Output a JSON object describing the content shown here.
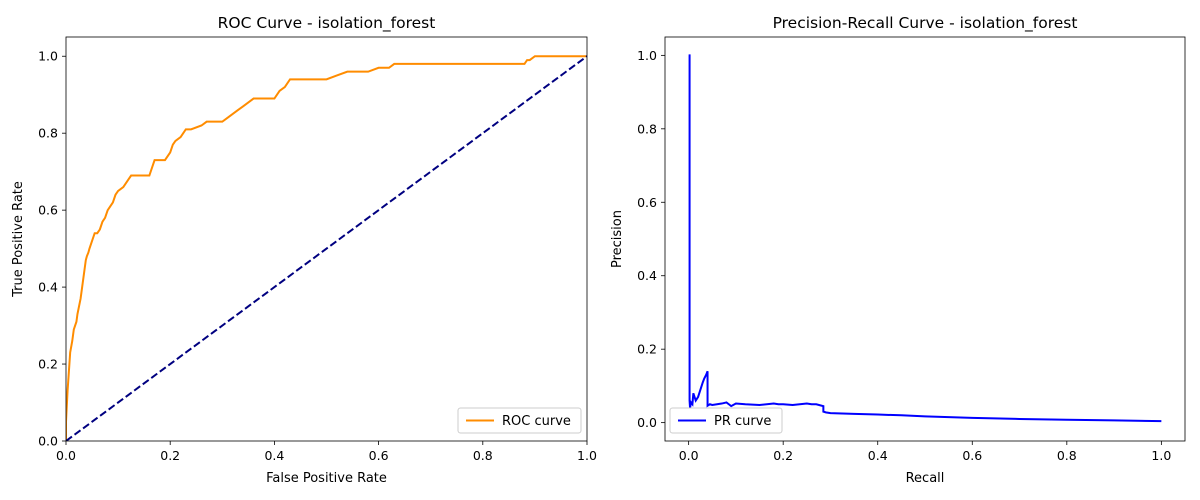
{
  "chart_data": [
    {
      "type": "line",
      "title": "ROC Curve - isolation_forest",
      "xlabel": "False Positive Rate",
      "ylabel": "True Positive Rate",
      "xlim": [
        0,
        1
      ],
      "ylim": [
        0,
        1.05
      ],
      "xticks": [
        0,
        0.2,
        0.4,
        0.6,
        0.8,
        1.0
      ],
      "yticks": [
        0,
        0.2,
        0.4,
        0.6,
        0.8,
        1.0
      ],
      "xtick_labels": [
        "0.0",
        "0.2",
        "0.4",
        "0.6",
        "0.8",
        "1.0"
      ],
      "ytick_labels": [
        "0.0",
        "0.2",
        "0.4",
        "0.6",
        "0.8",
        "1.0"
      ],
      "grid": false,
      "legend_position": "lower-right",
      "series": [
        {
          "name": "ROC curve",
          "color": "#ff8c00",
          "style": "solid",
          "x": [
            0,
            0,
            0.003,
            0.006,
            0.008,
            0.012,
            0.015,
            0.02,
            0.022,
            0.025,
            0.028,
            0.03,
            0.032,
            0.035,
            0.038,
            0.04,
            0.043,
            0.045,
            0.05,
            0.055,
            0.06,
            0.065,
            0.07,
            0.075,
            0.08,
            0.085,
            0.09,
            0.095,
            0.1,
            0.11,
            0.12,
            0.125,
            0.13,
            0.14,
            0.16,
            0.165,
            0.17,
            0.18,
            0.19,
            0.2,
            0.205,
            0.21,
            0.22,
            0.225,
            0.23,
            0.24,
            0.26,
            0.27,
            0.3,
            0.31,
            0.32,
            0.33,
            0.34,
            0.35,
            0.36,
            0.4,
            0.405,
            0.41,
            0.42,
            0.43,
            0.5,
            0.52,
            0.54,
            0.58,
            0.6,
            0.62,
            0.63,
            0.64,
            0.88,
            0.885,
            0.89,
            0.9,
            1.0
          ],
          "y": [
            0,
            0.05,
            0.13,
            0.19,
            0.23,
            0.26,
            0.29,
            0.31,
            0.33,
            0.35,
            0.37,
            0.39,
            0.41,
            0.44,
            0.47,
            0.48,
            0.49,
            0.5,
            0.52,
            0.54,
            0.54,
            0.55,
            0.57,
            0.58,
            0.6,
            0.61,
            0.62,
            0.64,
            0.65,
            0.66,
            0.68,
            0.69,
            0.69,
            0.69,
            0.69,
            0.71,
            0.73,
            0.73,
            0.73,
            0.75,
            0.77,
            0.78,
            0.79,
            0.8,
            0.81,
            0.81,
            0.82,
            0.83,
            0.83,
            0.84,
            0.85,
            0.86,
            0.87,
            0.88,
            0.89,
            0.89,
            0.9,
            0.91,
            0.92,
            0.94,
            0.94,
            0.95,
            0.96,
            0.96,
            0.97,
            0.97,
            0.98,
            0.98,
            0.98,
            0.99,
            0.99,
            1.0,
            1.0
          ]
        },
        {
          "color": "#000080",
          "style": "dashed",
          "x": [
            0,
            1
          ],
          "y": [
            0,
            1
          ]
        }
      ]
    },
    {
      "type": "line",
      "title": "Precision-Recall Curve - isolation_forest",
      "xlabel": "Recall",
      "ylabel": "Precision",
      "xlim": [
        -0.05,
        1.05
      ],
      "ylim": [
        -0.05,
        1.05
      ],
      "xticks": [
        0,
        0.2,
        0.4,
        0.6,
        0.8,
        1.0
      ],
      "yticks": [
        0,
        0.2,
        0.4,
        0.6,
        0.8,
        1.0
      ],
      "xtick_labels": [
        "0.0",
        "0.2",
        "0.4",
        "0.6",
        "0.8",
        "1.0"
      ],
      "ytick_labels": [
        "0.0",
        "0.2",
        "0.4",
        "0.6",
        "0.8",
        "1.0"
      ],
      "grid": false,
      "legend_position": "lower-left",
      "series": [
        {
          "name": "PR curve",
          "color": "#0000ff",
          "style": "solid",
          "x": [
            1.0,
            0.9,
            0.8,
            0.7,
            0.6,
            0.5,
            0.45,
            0.4,
            0.35,
            0.3,
            0.29,
            0.285,
            0.285,
            0.27,
            0.26,
            0.25,
            0.22,
            0.2,
            0.19,
            0.18,
            0.15,
            0.12,
            0.1,
            0.09,
            0.085,
            0.08,
            0.07,
            0.06,
            0.05,
            0.045,
            0.04,
            0.04,
            0.037,
            0.033,
            0.03,
            0.025,
            0.02,
            0.015,
            0.01,
            0.008,
            0.005,
            0.003,
            0.002,
            0.002,
            0.0
          ],
          "y": [
            0.004,
            0.006,
            0.008,
            0.01,
            0.013,
            0.017,
            0.02,
            0.022,
            0.024,
            0.026,
            0.028,
            0.03,
            0.045,
            0.05,
            0.05,
            0.052,
            0.048,
            0.05,
            0.05,
            0.052,
            0.048,
            0.05,
            0.052,
            0.045,
            0.05,
            0.055,
            0.052,
            0.05,
            0.048,
            0.05,
            0.046,
            0.14,
            0.13,
            0.12,
            0.11,
            0.09,
            0.07,
            0.06,
            0.08,
            0.05,
            0.055,
            0.04,
            0.06,
            1.0,
            1.0
          ]
        }
      ]
    }
  ]
}
